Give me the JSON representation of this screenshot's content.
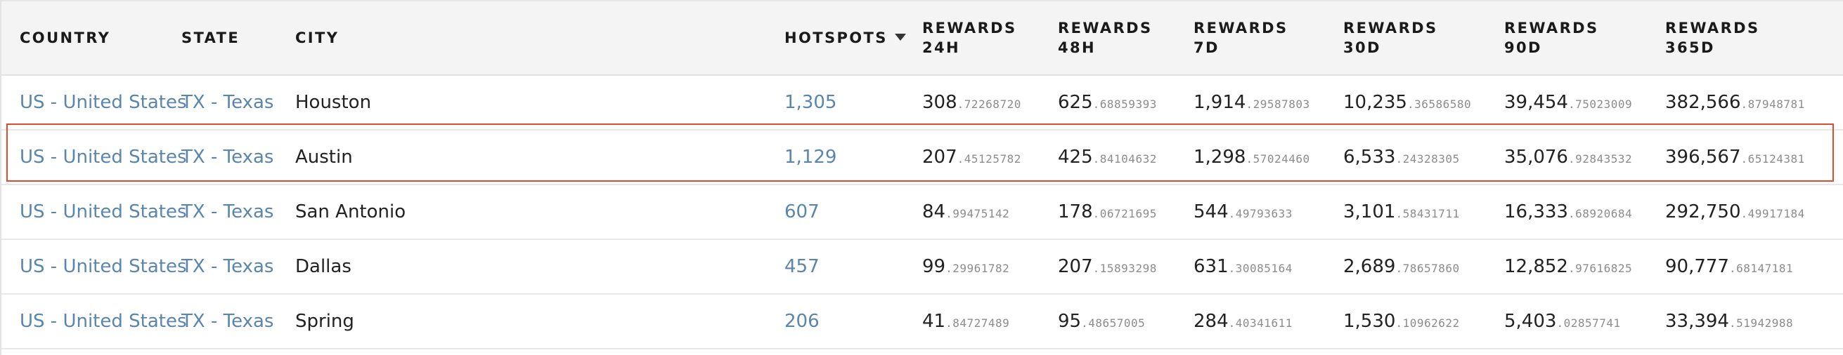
{
  "table": {
    "columns": [
      {
        "key": "country",
        "label": "COUNTRY"
      },
      {
        "key": "state",
        "label": "STATE"
      },
      {
        "key": "city",
        "label": "CITY"
      },
      {
        "key": "hotspots",
        "label": "HOTSPOTS",
        "sorted": "desc"
      },
      {
        "key": "r24h",
        "label": "REWARDS\n24H"
      },
      {
        "key": "r48h",
        "label": "REWARDS\n48H"
      },
      {
        "key": "r7d",
        "label": "REWARDS\n7D"
      },
      {
        "key": "r30d",
        "label": "REWARDS\n30D"
      },
      {
        "key": "r90d",
        "label": "REWARDS\n90D"
      },
      {
        "key": "r365d",
        "label": "REWARDS\n365D"
      }
    ],
    "rows": [
      {
        "country": "US - United States",
        "state": "TX - Texas",
        "city": "Houston",
        "hotspots": "1,305",
        "r24h": {
          "int": "308",
          "frac": ".72268720"
        },
        "r48h": {
          "int": "625",
          "frac": ".68859393"
        },
        "r7d": {
          "int": "1,914",
          "frac": ".29587803"
        },
        "r30d": {
          "int": "10,235",
          "frac": ".36586580"
        },
        "r90d": {
          "int": "39,454",
          "frac": ".75023009"
        },
        "r365d": {
          "int": "382,566",
          "frac": ".87948781"
        }
      },
      {
        "country": "US - United States",
        "state": "TX - Texas",
        "city": "Austin",
        "hotspots": "1,129",
        "r24h": {
          "int": "207",
          "frac": ".45125782"
        },
        "r48h": {
          "int": "425",
          "frac": ".84104632"
        },
        "r7d": {
          "int": "1,298",
          "frac": ".57024460"
        },
        "r30d": {
          "int": "6,533",
          "frac": ".24328305"
        },
        "r90d": {
          "int": "35,076",
          "frac": ".92843532"
        },
        "r365d": {
          "int": "396,567",
          "frac": ".65124381"
        }
      },
      {
        "country": "US - United States",
        "state": "TX - Texas",
        "city": "San Antonio",
        "hotspots": "607",
        "r24h": {
          "int": "84",
          "frac": ".99475142"
        },
        "r48h": {
          "int": "178",
          "frac": ".06721695"
        },
        "r7d": {
          "int": "544",
          "frac": ".49793633"
        },
        "r30d": {
          "int": "3,101",
          "frac": ".58431711"
        },
        "r90d": {
          "int": "16,333",
          "frac": ".68920684"
        },
        "r365d": {
          "int": "292,750",
          "frac": ".49917184"
        }
      },
      {
        "country": "US - United States",
        "state": "TX - Texas",
        "city": "Dallas",
        "hotspots": "457",
        "r24h": {
          "int": "99",
          "frac": ".29961782"
        },
        "r48h": {
          "int": "207",
          "frac": ".15893298"
        },
        "r7d": {
          "int": "631",
          "frac": ".30085164"
        },
        "r30d": {
          "int": "2,689",
          "frac": ".78657860"
        },
        "r90d": {
          "int": "12,852",
          "frac": ".97616825"
        },
        "r365d": {
          "int": "90,777",
          "frac": ".68147181"
        }
      },
      {
        "country": "US - United States",
        "state": "TX - Texas",
        "city": "Spring",
        "hotspots": "206",
        "r24h": {
          "int": "41",
          "frac": ".84727489"
        },
        "r48h": {
          "int": "95",
          "frac": ".48657005"
        },
        "r7d": {
          "int": "284",
          "frac": ".40341611"
        },
        "r30d": {
          "int": "1,530",
          "frac": ".10962622"
        },
        "r90d": {
          "int": "5,403",
          "frac": ".02857741"
        },
        "r365d": {
          "int": "33,394",
          "frac": ".51942988"
        }
      }
    ]
  },
  "colors": {
    "link": "#5a86ad",
    "highlight": "#e24a2e",
    "header_bg": "#f4f4f4"
  }
}
